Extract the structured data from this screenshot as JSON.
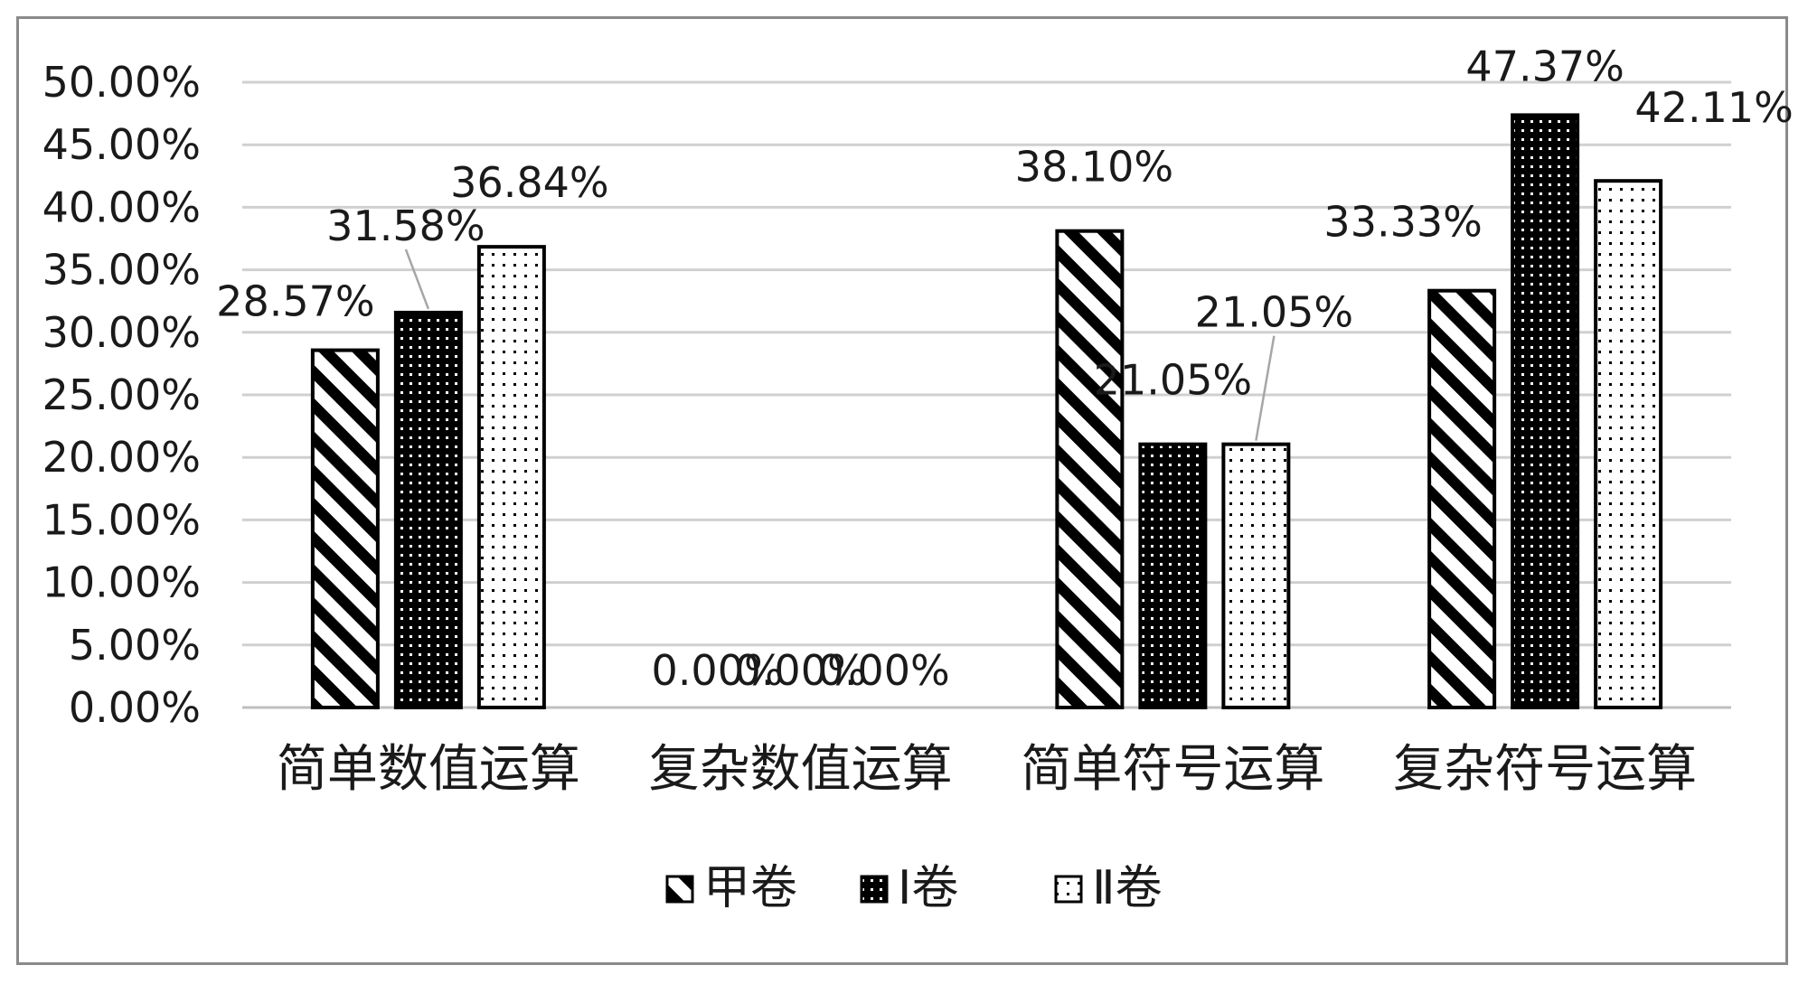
{
  "chart_data": {
    "type": "bar",
    "categories": [
      "简单数值运算",
      "复杂数值运算",
      "简单符号运算",
      "复杂符号运算"
    ],
    "series": [
      {
        "name": "甲卷",
        "values": [
          28.57,
          0.0,
          38.1,
          33.33
        ],
        "labels": [
          "28.57%",
          "0.00%",
          "38.10%",
          "33.33%"
        ],
        "pattern": "diagonal"
      },
      {
        "name": "Ⅰ卷",
        "values": [
          31.58,
          0.0,
          21.05,
          47.37
        ],
        "labels": [
          "31.58%",
          "0.00%",
          "21.05%",
          "47.37%"
        ],
        "pattern": "dense-dots"
      },
      {
        "name": "Ⅱ卷",
        "values": [
          36.84,
          0.0,
          21.05,
          42.11
        ],
        "labels": [
          "36.84%",
          "0.00%",
          "21.05%",
          "42.11%"
        ],
        "pattern": "sparse-dots"
      }
    ],
    "y_ticks": [
      "0.00%",
      "5.00%",
      "10.00%",
      "15.00%",
      "20.00%",
      "25.00%",
      "30.00%",
      "35.00%",
      "40.00%",
      "45.00%",
      "50.00%"
    ],
    "ylim": [
      0,
      50
    ],
    "grid": true,
    "legend_position": "bottom",
    "colors": {
      "bar_outline": "#000000",
      "gridline": "#d0d0d0",
      "axis": "#bfbfbf",
      "frame": "#8a8a8a"
    }
  }
}
